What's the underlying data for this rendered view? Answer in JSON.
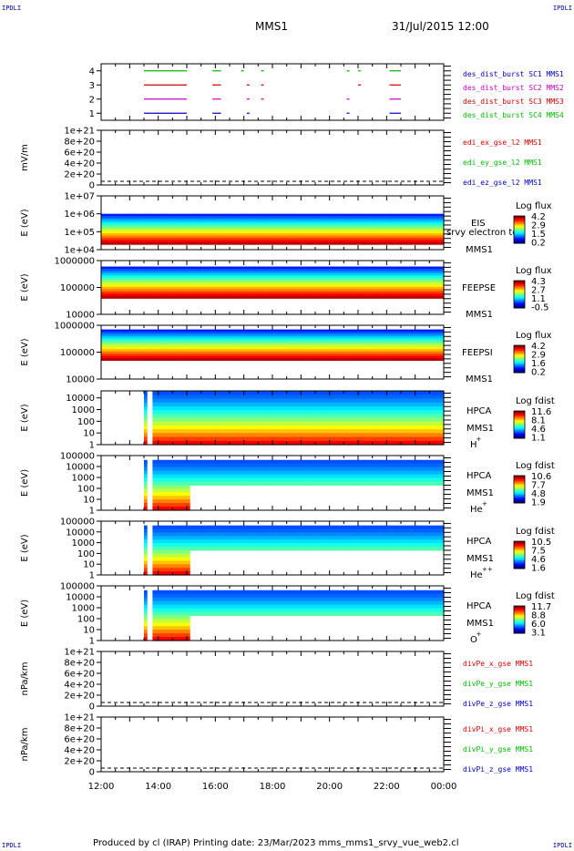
{
  "corner_tl": "IPDLI",
  "corner_tr": "IPDLI",
  "corner_bl": "IPDLI",
  "corner_br": "IPDLI",
  "header": {
    "spacecraft": "MMS1",
    "datetime": "31/Jul/2015 12:00"
  },
  "footer": {
    "text": "Produced by cl (IRAP)   Printing date: 23/Mar/2023   mms_mms1_srvy_vue_web2.cl"
  },
  "x_axis": {
    "ticks": [
      "12:00",
      "14:00",
      "16:00",
      "18:00",
      "20:00",
      "22:00",
      "00:00"
    ]
  },
  "colors": {
    "mms1": "#0000cc",
    "mms2": "#cc00cc",
    "mms3": "#cc0000",
    "mms4": "#00bb00",
    "x": "#dd0000",
    "y": "#00bb00",
    "z": "#0000cc"
  },
  "chart_data": [
    {
      "type": "line",
      "panel": "burst",
      "ylabel": "",
      "yticks": [
        "1",
        "2",
        "3",
        "4"
      ],
      "ylim": [
        0.5,
        4.5
      ],
      "series": [
        {
          "name": "des_dist_burst SC1 MMS1",
          "y": 1,
          "intervals": [
            [
              13.5,
              15.0
            ],
            [
              15.9,
              16.2
            ],
            [
              17.1,
              17.2
            ],
            [
              20.6,
              20.7
            ],
            [
              22.1,
              22.5
            ]
          ]
        },
        {
          "name": "des_dist_burst SC2 MMS2",
          "y": 2,
          "intervals": [
            [
              13.5,
              15.0
            ],
            [
              15.9,
              16.2
            ],
            [
              17.1,
              17.2
            ],
            [
              17.6,
              17.7
            ],
            [
              20.6,
              20.7
            ],
            [
              22.1,
              22.5
            ]
          ]
        },
        {
          "name": "des_dist_burst SC3 MMS3",
          "y": 3,
          "intervals": [
            [
              13.5,
              15.0
            ],
            [
              15.9,
              16.2
            ],
            [
              17.1,
              17.2
            ],
            [
              17.6,
              17.7
            ],
            [
              21.0,
              21.1
            ],
            [
              22.1,
              22.5
            ]
          ]
        },
        {
          "name": "des_dist_burst SC4 MMS4",
          "y": 4,
          "intervals": [
            [
              13.5,
              15.0
            ],
            [
              15.9,
              16.2
            ],
            [
              16.9,
              17.0
            ],
            [
              17.6,
              17.7
            ],
            [
              20.6,
              20.7
            ],
            [
              21.0,
              21.1
            ],
            [
              22.1,
              22.5
            ]
          ]
        }
      ]
    },
    {
      "type": "line",
      "panel": "edi",
      "ylabel": "mV/m",
      "yticks": [
        "0",
        "2e+20",
        "4e+20",
        "6e+20",
        "8e+20",
        "1e+21"
      ],
      "ylim": [
        0,
        1e+21
      ],
      "series": [
        {
          "name": "edi_ex_gse_l2 MMS1",
          "values": []
        },
        {
          "name": "edi_ey_gse_l2 MMS1",
          "values": []
        },
        {
          "name": "edi_ez_gse_l2 MMS1",
          "values": []
        }
      ]
    },
    {
      "type": "heatmap",
      "panel": "eis",
      "ylabel": "E (eV)",
      "log": true,
      "yticks": [
        "1e+04",
        "1e+05",
        "1e+06",
        "1e+07"
      ],
      "ylim": [
        10000.0,
        10000000.0
      ],
      "data_range": [
        20000.0,
        1000000.0
      ],
      "labels": [
        "EIS",
        "srvy electron to",
        "MMS1"
      ],
      "colorbar": {
        "title": "Log flux",
        "ticks": [
          "4.2",
          "2.9",
          "1.5",
          "0.2"
        ],
        "min": 0.2,
        "max": 4.2
      }
    },
    {
      "type": "heatmap",
      "panel": "feepse",
      "ylabel": "E (eV)",
      "log": true,
      "yticks": [
        "10000",
        "100000",
        "1000000"
      ],
      "ylim": [
        10000.0,
        1000000.0
      ],
      "data_range": [
        40000.0,
        600000.0
      ],
      "labels": [
        "FEEPSE",
        "MMS1"
      ],
      "colorbar": {
        "title": "Log flux",
        "ticks": [
          "4.3",
          "2.7",
          "1.1",
          "-0.5"
        ],
        "min": -0.5,
        "max": 4.3
      }
    },
    {
      "type": "heatmap",
      "panel": "feepsi",
      "ylabel": "E (eV)",
      "log": true,
      "yticks": [
        "10000",
        "100000",
        "1000000"
      ],
      "ylim": [
        10000.0,
        1000000.0
      ],
      "data_range": [
        50000.0,
        700000.0
      ],
      "labels": [
        "FEEPSI",
        "MMS1"
      ],
      "colorbar": {
        "title": "Log flux",
        "ticks": [
          "4.2",
          "2.9",
          "1.6",
          "0.2"
        ],
        "min": 0.2,
        "max": 4.2
      }
    },
    {
      "type": "heatmap",
      "panel": "hpca_h",
      "ylabel": "E (eV)",
      "log": true,
      "yticks": [
        "1",
        "10",
        "100",
        "1000",
        "10000"
      ],
      "ylim": [
        1,
        40000.0
      ],
      "data_range": [
        1,
        40000.0
      ],
      "labels": [
        "HPCA",
        "MMS1",
        "H",
        "+"
      ],
      "colorbar": {
        "title": "Log fdist",
        "ticks": [
          "11.6",
          "8.1",
          "4.6",
          "1.1"
        ],
        "min": 1.1,
        "max": 11.6
      }
    },
    {
      "type": "heatmap",
      "panel": "hpca_he",
      "ylabel": "E (eV)",
      "log": true,
      "yticks": [
        "1",
        "10",
        "100",
        "1000",
        "10000",
        "100000"
      ],
      "ylim": [
        1,
        100000.0
      ],
      "data_range": [
        1,
        40000.0
      ],
      "labels": [
        "HPCA",
        "MMS1",
        "He",
        "+"
      ],
      "colorbar": {
        "title": "Log fdist",
        "ticks": [
          "10.6",
          "7.7",
          "4.8",
          "1.9"
        ],
        "min": 1.9,
        "max": 10.6
      }
    },
    {
      "type": "heatmap",
      "panel": "hpca_hepp",
      "ylabel": "E (eV)",
      "log": true,
      "yticks": [
        "1",
        "10",
        "100",
        "1000",
        "10000",
        "100000"
      ],
      "ylim": [
        1,
        100000.0
      ],
      "data_range": [
        1,
        40000.0
      ],
      "labels": [
        "HPCA",
        "MMS1",
        "He",
        "++"
      ],
      "colorbar": {
        "title": "Log fdist",
        "ticks": [
          "10.5",
          "7.5",
          "4.6",
          "1.6"
        ],
        "min": 1.6,
        "max": 10.5
      }
    },
    {
      "type": "heatmap",
      "panel": "hpca_o",
      "ylabel": "E (eV)",
      "log": true,
      "yticks": [
        "1",
        "10",
        "100",
        "1000",
        "10000",
        "100000"
      ],
      "ylim": [
        1,
        100000.0
      ],
      "data_range": [
        1,
        40000.0
      ],
      "labels": [
        "HPCA",
        "MMS1",
        "O",
        "+"
      ],
      "colorbar": {
        "title": "Log fdist",
        "ticks": [
          "11.7",
          "8.8",
          "6.0",
          "3.1"
        ],
        "min": 3.1,
        "max": 11.7
      }
    },
    {
      "type": "line",
      "panel": "divpe",
      "ylabel": "nPa/km",
      "yticks": [
        "0",
        "2e+20",
        "4e+20",
        "6e+20",
        "8e+20",
        "1e+21"
      ],
      "ylim": [
        0,
        1e+21
      ],
      "series": [
        {
          "name": "divPe_x_gse MMS1",
          "values": []
        },
        {
          "name": "divPe_y_gse MMS1",
          "values": []
        },
        {
          "name": "divPe_z_gse MMS1",
          "values": []
        }
      ]
    },
    {
      "type": "line",
      "panel": "divpi",
      "ylabel": "nPa/km",
      "yticks": [
        "0",
        "2e+20",
        "4e+20",
        "6e+20",
        "8e+20",
        "1e+21"
      ],
      "ylim": [
        0,
        1e+21
      ],
      "series": [
        {
          "name": "divPi_x_gse MMS1",
          "values": []
        },
        {
          "name": "divPi_y_gse MMS1",
          "values": []
        },
        {
          "name": "divPi_z_gse MMS1",
          "values": []
        }
      ]
    }
  ]
}
